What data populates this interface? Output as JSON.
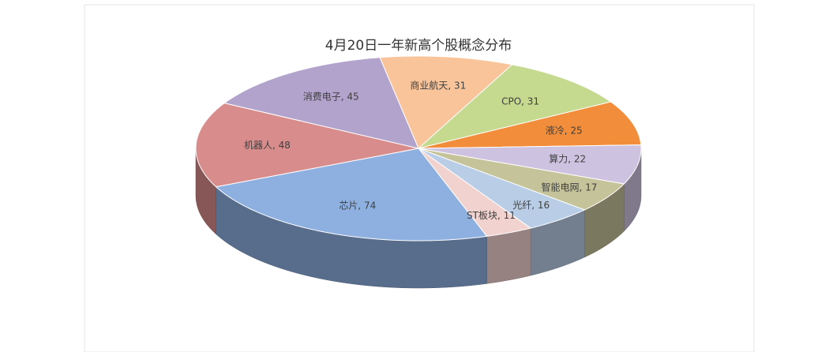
{
  "chart_data": {
    "type": "pie3d",
    "title": "4月20日一年新高个股概念分布",
    "values": [
      31,
      31,
      25,
      22,
      17,
      16,
      11,
      74,
      48,
      45
    ],
    "value_labels": [
      "商业航天, 31",
      "CPO, 31",
      "液冷, 25",
      "算力, 22",
      "智能电网, 17",
      "光纤, 16",
      "ST板块, 11",
      "芯片, 74",
      "机器人, 48",
      "消费电子, 45"
    ],
    "colors": [
      "#f9c49a",
      "#c5d98f",
      "#f28e3b",
      "#cdc3e0",
      "#c4c39a",
      "#b9cde6",
      "#f2d2cf",
      "#8db0e0",
      "#d98c8c",
      "#b2a3cc"
    ]
  }
}
